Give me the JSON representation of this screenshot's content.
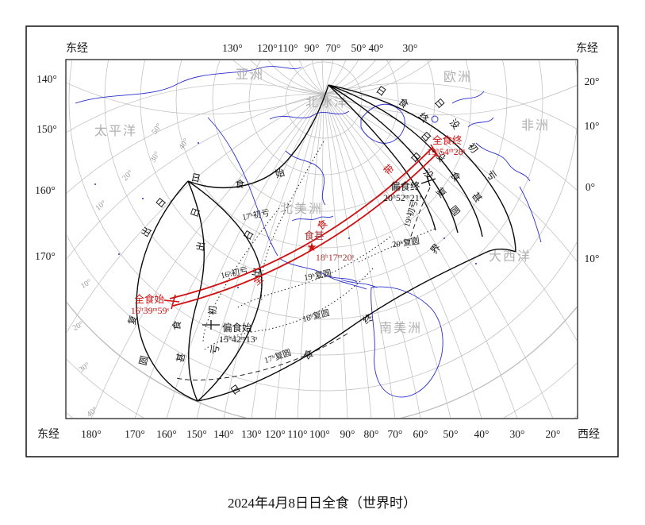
{
  "title": "2024年4月8日日全食（世界时）",
  "corners": {
    "top_left": "东经",
    "top_right": "东经",
    "bottom_left": "东经",
    "bottom_right": "西经"
  },
  "axes": {
    "top": [
      "130°",
      "120°",
      "110°",
      "90°",
      "70°",
      "50°",
      "40°",
      "30°"
    ],
    "left": [
      "140°",
      "150°",
      "160°",
      "170°"
    ],
    "right": [
      "20°",
      "10°",
      "0°",
      "10°"
    ],
    "bottom": [
      "180°",
      "170°",
      "160°",
      "150°",
      "140°",
      "130°",
      "120°",
      "110°",
      "100°",
      "90°",
      "80°",
      "70°",
      "60°",
      "50°",
      "40°",
      "30°",
      "20°"
    ]
  },
  "regions": [
    "太平洋",
    "亚洲",
    "北冰洋",
    "欧洲",
    "非洲",
    "北美洲",
    "大西洋",
    "南美洲"
  ],
  "grat": [
    "50°",
    "40°",
    "30°",
    "20°",
    "10°",
    "10°",
    "20°",
    "30°",
    "40°"
  ],
  "events": {
    "partial_begin": {
      "label": "偏食始",
      "time": "15ʰ42ᵐ13ˢ"
    },
    "total_begin": {
      "label": "全食始",
      "time": "16ʰ39ᵐ59ˢ"
    },
    "greatest": {
      "label": "食甚",
      "time": "18ʰ17ᵐ20ˢ"
    },
    "total_end": {
      "label": "全食终",
      "time": "19ʰ54ᵐ28ˢ"
    },
    "partial_end": {
      "label": "偏食终",
      "time": "20ʰ52ᵐ21ˢ"
    }
  },
  "contacts": [
    "17ʰ初亏",
    "16ʰ初亏",
    "19ʰ初亏",
    "18ʰ复圆",
    "17ʰ复圆",
    "19ʰ复圆",
    "20ʰ复圆"
  ],
  "chars": {
    "begin": [
      "日",
      "食",
      "始"
    ],
    "end_top": [
      "日",
      "食",
      "终"
    ],
    "end_bottom": [
      "日",
      "食",
      "终",
      "界"
    ],
    "sr_c4": [
      "日",
      "出",
      "复",
      "圆"
    ],
    "sr_max": [
      "日",
      "出",
      "食",
      "甚"
    ],
    "sr_c1": [
      "日",
      "出",
      "初",
      "亏"
    ],
    "ss_c1": [
      "日",
      "没",
      "初",
      "亏"
    ],
    "ss_max": [
      "日",
      "没",
      "食",
      "甚"
    ],
    "ss_c4": [
      "日",
      "没",
      "复",
      "圆"
    ],
    "band": [
      "全",
      "食",
      "带"
    ]
  },
  "symbols": {
    "star": "★"
  },
  "colors": {
    "band_red": "#d01111",
    "label_red": "#cc1111",
    "greatest_red": "#a23333",
    "coast_blue": "#2a2ecc",
    "grid_gray": "#bcbcbc",
    "region_gray": "#b0b0b0"
  }
}
